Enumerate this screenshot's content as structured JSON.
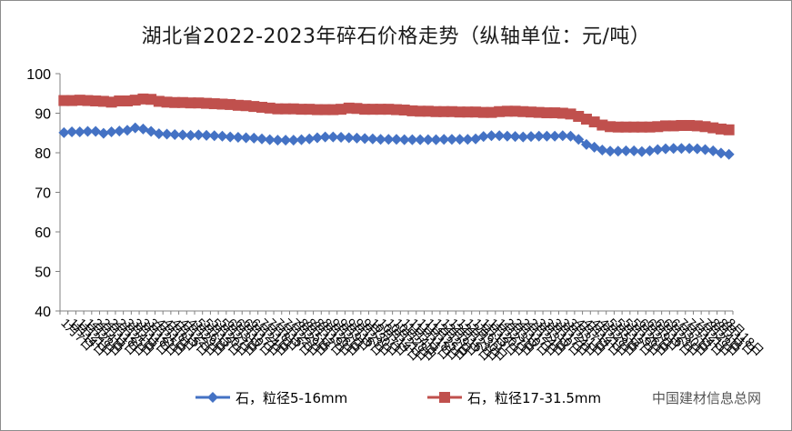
{
  "chart_data": {
    "type": "line",
    "title": "湖北省2022-2023年碎石价格走势（纵轴单位：元/吨）",
    "ylim": [
      40,
      100
    ],
    "yticks": [
      40,
      50,
      60,
      70,
      80,
      90,
      100
    ],
    "xlabel": "",
    "ylabel": "",
    "legend_position": "bottom",
    "x_tick_labels": [
      "1月7日",
      "1月14日",
      "1月21日",
      "1月28日",
      "2月4日",
      "2月11日",
      "2月18日",
      "2月25日",
      "3月4日",
      "3月11日",
      "3月18日",
      "3月25日",
      "4月1日",
      "4月8日",
      "4月15日",
      "4月22日",
      "4月29日",
      "5月6日",
      "5月13日",
      "5月20日",
      "5月27日",
      "6月3日",
      "6月10日",
      "6月17日",
      "6月24日",
      "7月1日",
      "7月8日",
      "7月15日",
      "7月22日",
      "7月29日",
      "8月5日",
      "8月12日",
      "8月19日",
      "8月26日",
      "9月2日",
      "9月9日",
      "9月16日",
      "9月23日",
      "9月30日",
      "10月7日",
      "10月14日",
      "10月21日",
      "10月28日",
      "11月4日",
      "11月11日",
      "11月18日",
      "11月25日",
      "12月2日",
      "12月9日",
      "12月16日",
      "12月23日",
      "12月30日",
      "1月6日",
      "1月13日",
      "1月20日",
      "1月27日",
      "2月3日",
      "2月10日",
      "2月17日",
      "2月24日",
      "3月3日",
      "3月10日",
      "3月17日",
      "3月24日",
      "3月31日",
      "4月7日",
      "4月14日",
      "4月21日",
      "4月28日",
      "5月5日",
      "5月12日",
      "5月19日",
      "5月26日",
      "6月2日",
      "6月9日",
      "6月16日",
      "6月23日",
      "6月30日",
      "7月7日",
      "7月14日",
      "7月21日",
      "7月28日",
      "8月4日",
      "8月11日",
      "8月18日"
    ],
    "series": [
      {
        "name": "石，粒径5-16mm",
        "color": "#4472c4",
        "marker": "diamond",
        "values": [
          85.1,
          85.3,
          85.3,
          85.4,
          85.4,
          84.9,
          85.3,
          85.5,
          85.7,
          86.3,
          86.0,
          85.4,
          84.8,
          84.7,
          84.6,
          84.5,
          84.4,
          84.5,
          84.4,
          84.3,
          84.2,
          84.0,
          83.9,
          83.8,
          83.7,
          83.5,
          83.3,
          83.2,
          83.2,
          83.2,
          83.3,
          83.5,
          83.8,
          84.0,
          84.0,
          83.9,
          83.8,
          83.7,
          83.6,
          83.5,
          83.4,
          83.4,
          83.4,
          83.3,
          83.3,
          83.3,
          83.3,
          83.3,
          83.4,
          83.4,
          83.4,
          83.4,
          83.5,
          84.1,
          84.3,
          84.3,
          84.2,
          84.1,
          84.0,
          84.1,
          84.2,
          84.2,
          84.2,
          84.3,
          84.2,
          83.4,
          82.1,
          81.4,
          80.7,
          80.4,
          80.4,
          80.5,
          80.5,
          80.3,
          80.5,
          80.8,
          81.0,
          81.1,
          81.1,
          81.1,
          81.0,
          80.8,
          80.5,
          79.9,
          79.6
        ]
      },
      {
        "name": "石，粒径17-31.5mm",
        "color": "#c0504d",
        "marker": "square",
        "values": [
          93.2,
          93.2,
          93.3,
          93.2,
          93.1,
          93.0,
          92.8,
          93.1,
          93.1,
          93.3,
          93.6,
          93.5,
          93.0,
          92.8,
          92.7,
          92.7,
          92.6,
          92.6,
          92.5,
          92.4,
          92.3,
          92.2,
          92.0,
          91.9,
          91.7,
          91.5,
          91.3,
          91.1,
          91.1,
          91.1,
          91.0,
          91.0,
          90.9,
          90.9,
          90.9,
          91.0,
          91.3,
          91.2,
          91.0,
          91.0,
          91.0,
          91.0,
          90.9,
          90.8,
          90.6,
          90.5,
          90.5,
          90.4,
          90.4,
          90.4,
          90.3,
          90.3,
          90.3,
          90.2,
          90.2,
          90.4,
          90.5,
          90.5,
          90.4,
          90.3,
          90.2,
          90.1,
          90.1,
          90.0,
          89.8,
          89.2,
          88.5,
          87.8,
          87.0,
          86.6,
          86.5,
          86.5,
          86.5,
          86.5,
          86.5,
          86.6,
          86.8,
          86.8,
          86.9,
          86.9,
          86.8,
          86.6,
          86.3,
          86.0,
          85.8
        ]
      }
    ]
  },
  "watermark_text": "中国建材信息总网"
}
